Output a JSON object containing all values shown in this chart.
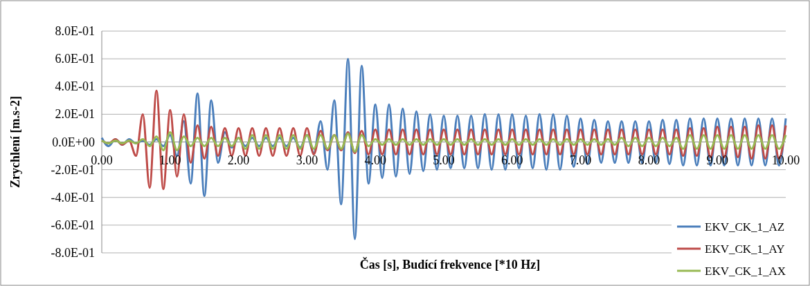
{
  "chart_data": {
    "type": "line",
    "xlabel": "Čas [s], Budící frekvence [*10 Hz]",
    "ylabel": "Zrychlení [m.s-2]",
    "x": [
      0,
      0.1,
      0.2,
      0.3,
      0.4,
      0.5,
      0.6,
      0.7,
      0.8,
      0.9,
      1,
      1.1,
      1.2,
      1.3,
      1.4,
      1.5,
      1.6,
      1.7,
      1.8,
      1.9,
      2,
      2.1,
      2.2,
      2.3,
      2.4,
      2.5,
      2.6,
      2.7,
      2.8,
      2.9,
      3,
      3.1,
      3.2,
      3.3,
      3.4,
      3.5,
      3.6,
      3.7,
      3.8,
      3.9,
      4,
      4.1,
      4.2,
      4.3,
      4.4,
      4.5,
      4.6,
      4.7,
      4.8,
      4.9,
      5,
      5.1,
      5.2,
      5.3,
      5.4,
      5.5,
      5.6,
      5.7,
      5.8,
      5.9,
      6,
      6.1,
      6.2,
      6.3,
      6.4,
      6.5,
      6.6,
      6.7,
      6.8,
      6.9,
      7,
      7.1,
      7.2,
      7.3,
      7.4,
      7.5,
      7.6,
      7.7,
      7.8,
      7.9,
      8,
      8.1,
      8.2,
      8.3,
      8.4,
      8.5,
      8.6,
      8.7,
      8.8,
      8.9,
      9,
      9.1,
      9.2,
      9.3,
      9.4,
      9.5,
      9.6,
      9.7,
      9.8,
      9.9,
      10
    ],
    "series": [
      {
        "name": "EKV_CK_1_AZ",
        "color": "#4a7ebb",
        "values": [
          0.03,
          -0.03,
          0.02,
          -0.02,
          0.02,
          -0.01,
          0.01,
          -0.02,
          0.02,
          -0.03,
          0.05,
          -0.1,
          0.15,
          -0.3,
          0.35,
          -0.39,
          0.3,
          -0.15,
          0.07,
          -0.04,
          0.03,
          -0.03,
          0.03,
          -0.03,
          0.03,
          -0.03,
          0.03,
          -0.03,
          0.03,
          -0.04,
          0.05,
          -0.08,
          0.15,
          -0.2,
          0.3,
          -0.45,
          0.6,
          -0.7,
          0.55,
          -0.3,
          0.27,
          -0.26,
          0.27,
          -0.25,
          0.24,
          -0.23,
          0.22,
          -0.21,
          0.2,
          -0.2,
          0.19,
          -0.19,
          0.19,
          -0.19,
          0.19,
          -0.19,
          0.2,
          -0.2,
          0.2,
          -0.2,
          0.2,
          -0.19,
          0.19,
          -0.19,
          0.2,
          -0.2,
          0.2,
          -0.2,
          0.19,
          -0.18,
          0.17,
          -0.16,
          0.16,
          -0.15,
          0.15,
          -0.15,
          0.15,
          -0.15,
          0.15,
          -0.15,
          0.15,
          -0.15,
          0.16,
          -0.16,
          0.16,
          -0.17,
          0.17,
          -0.17,
          0.17,
          -0.17,
          0.17,
          -0.17,
          0.17,
          -0.17,
          0.17,
          -0.17,
          0.17,
          -0.17,
          0.17,
          -0.17,
          0.17
        ]
      },
      {
        "name": "EKV_CK_1_AY",
        "color": "#be4b48",
        "values": [
          0.01,
          -0.01,
          0.02,
          -0.02,
          0.01,
          -0.1,
          0.2,
          -0.33,
          0.37,
          -0.34,
          0.23,
          -0.25,
          0.2,
          -0.15,
          0.12,
          -0.12,
          0.11,
          -0.1,
          0.1,
          -0.1,
          0.1,
          -0.1,
          0.1,
          -0.1,
          0.1,
          -0.1,
          0.1,
          -0.1,
          0.1,
          -0.1,
          0.1,
          -0.09,
          0.08,
          -0.06,
          0.05,
          -0.06,
          0.07,
          -0.08,
          0.08,
          -0.09,
          0.09,
          -0.09,
          0.09,
          -0.09,
          0.09,
          -0.09,
          0.09,
          -0.09,
          0.09,
          -0.09,
          0.09,
          -0.09,
          0.09,
          -0.09,
          0.09,
          -0.09,
          0.09,
          -0.09,
          0.09,
          -0.09,
          0.09,
          -0.09,
          0.09,
          -0.09,
          0.09,
          -0.09,
          0.09,
          -0.09,
          0.09,
          -0.09,
          0.09,
          -0.09,
          0.09,
          -0.09,
          0.09,
          -0.09,
          0.09,
          -0.09,
          0.09,
          -0.09,
          0.09,
          -0.09,
          0.09,
          -0.09,
          0.09,
          -0.1,
          0.1,
          -0.1,
          0.1,
          -0.11,
          0.11,
          -0.11,
          0.11,
          -0.11,
          0.11,
          -0.12,
          0.12,
          -0.12,
          0.12,
          -0.12,
          0.12
        ]
      },
      {
        "name": "EKV_CK_1_AX",
        "color": "#98b954",
        "values": [
          0.01,
          -0.01,
          0.01,
          -0.01,
          0.01,
          -0.01,
          0.02,
          -0.03,
          0.04,
          -0.06,
          0.07,
          -0.06,
          0.04,
          -0.03,
          0.03,
          -0.03,
          0.03,
          -0.03,
          0.03,
          -0.03,
          0.03,
          -0.05,
          0.05,
          -0.05,
          0.05,
          -0.05,
          0.05,
          -0.05,
          0.05,
          -0.05,
          0.05,
          -0.05,
          0.05,
          -0.05,
          0.05,
          -0.05,
          0.06,
          -0.07,
          0.05,
          -0.03,
          0.02,
          -0.02,
          0.02,
          -0.02,
          0.02,
          -0.02,
          0.02,
          -0.02,
          0.02,
          -0.02,
          0.02,
          -0.02,
          0.02,
          -0.02,
          0.02,
          -0.02,
          0.02,
          -0.02,
          0.02,
          -0.02,
          0.02,
          -0.02,
          0.02,
          -0.02,
          0.02,
          -0.02,
          0.02,
          -0.02,
          0.02,
          -0.02,
          0.02,
          -0.02,
          0.02,
          -0.02,
          0.02,
          -0.02,
          0.03,
          -0.03,
          0.03,
          -0.03,
          0.03,
          -0.03,
          0.03,
          -0.03,
          0.03,
          -0.05,
          0.05,
          -0.05,
          0.05,
          -0.05,
          0.05,
          -0.05,
          0.05,
          -0.05,
          0.05,
          -0.05,
          0.05,
          -0.05,
          0.05,
          -0.05,
          0.05
        ]
      }
    ],
    "xlim": [
      0,
      10
    ],
    "xticks": [
      {
        "value": 0,
        "label": "0.00"
      },
      {
        "value": 1,
        "label": "1.00"
      },
      {
        "value": 2,
        "label": "2.00"
      },
      {
        "value": 3,
        "label": "3.00"
      },
      {
        "value": 4,
        "label": "4.00"
      },
      {
        "value": 5,
        "label": "5.00"
      },
      {
        "value": 6,
        "label": "6.00"
      },
      {
        "value": 7,
        "label": "7.00"
      },
      {
        "value": 8,
        "label": "8.00"
      },
      {
        "value": 9,
        "label": "9.00"
      },
      {
        "value": 10,
        "label": "10.00"
      }
    ],
    "ylim": [
      -0.8,
      0.8
    ],
    "yticks": [
      {
        "value": -0.8,
        "label": "-8.0E-01"
      },
      {
        "value": -0.6,
        "label": "-6.0E-01"
      },
      {
        "value": -0.4,
        "label": "-4.0E-01"
      },
      {
        "value": -0.2,
        "label": "-2.0E-01"
      },
      {
        "value": 0,
        "label": "0.0E+00"
      },
      {
        "value": 0.2,
        "label": "2.0E-01"
      },
      {
        "value": 0.4,
        "label": "4.0E-01"
      },
      {
        "value": 0.6,
        "label": "6.0E-01"
      },
      {
        "value": 0.8,
        "label": "8.0E-01"
      }
    ],
    "grid": "y",
    "legend": "bottom right"
  }
}
